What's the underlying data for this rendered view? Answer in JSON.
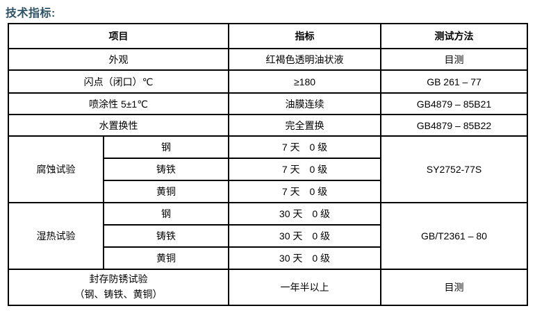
{
  "title": "技术指标:",
  "table": {
    "headers": {
      "item": "项目",
      "spec": "指标",
      "method": "测试方法"
    },
    "rows": {
      "appearance": {
        "item": "外观",
        "spec": "红褐色透明油状液",
        "method": "目测"
      },
      "flash_point": {
        "item": "闪点（闭口）℃",
        "spec": "≥180",
        "method": "GB 261 – 77"
      },
      "sprayability": {
        "item": "喷涂性 5±1℃",
        "spec": "油膜连续",
        "method": "GB4879 – 85B21"
      },
      "water_displacement": {
        "item": "水置换性",
        "spec": "完全置换",
        "method": "GB4879 – 85B22"
      },
      "corrosion_test": {
        "group": "腐蚀试验",
        "method": "SY2752-77S",
        "sub": [
          {
            "item": "钢",
            "spec": "7 天　0 级"
          },
          {
            "item": "铸铁",
            "spec": "7 天　0 级"
          },
          {
            "item": "黄铜",
            "spec": "7 天　0 级"
          }
        ]
      },
      "damp_heat_test": {
        "group": "湿热试验",
        "method": "GB/T2361 – 80",
        "sub": [
          {
            "item": "钢",
            "spec": "30 天　0 级"
          },
          {
            "item": "铸铁",
            "spec": "30 天　0 级"
          },
          {
            "item": "黄铜",
            "spec": "30 天　0 级"
          }
        ]
      },
      "storage_rust_test": {
        "item_line1": "封存防锈试验",
        "item_line2": "（钢、铸铁、黄铜）",
        "spec": "一年半以上",
        "method": "目测"
      }
    }
  },
  "colors": {
    "title": "#2d5266",
    "border": "#000000",
    "text": "#000000",
    "background": "#ffffff"
  }
}
